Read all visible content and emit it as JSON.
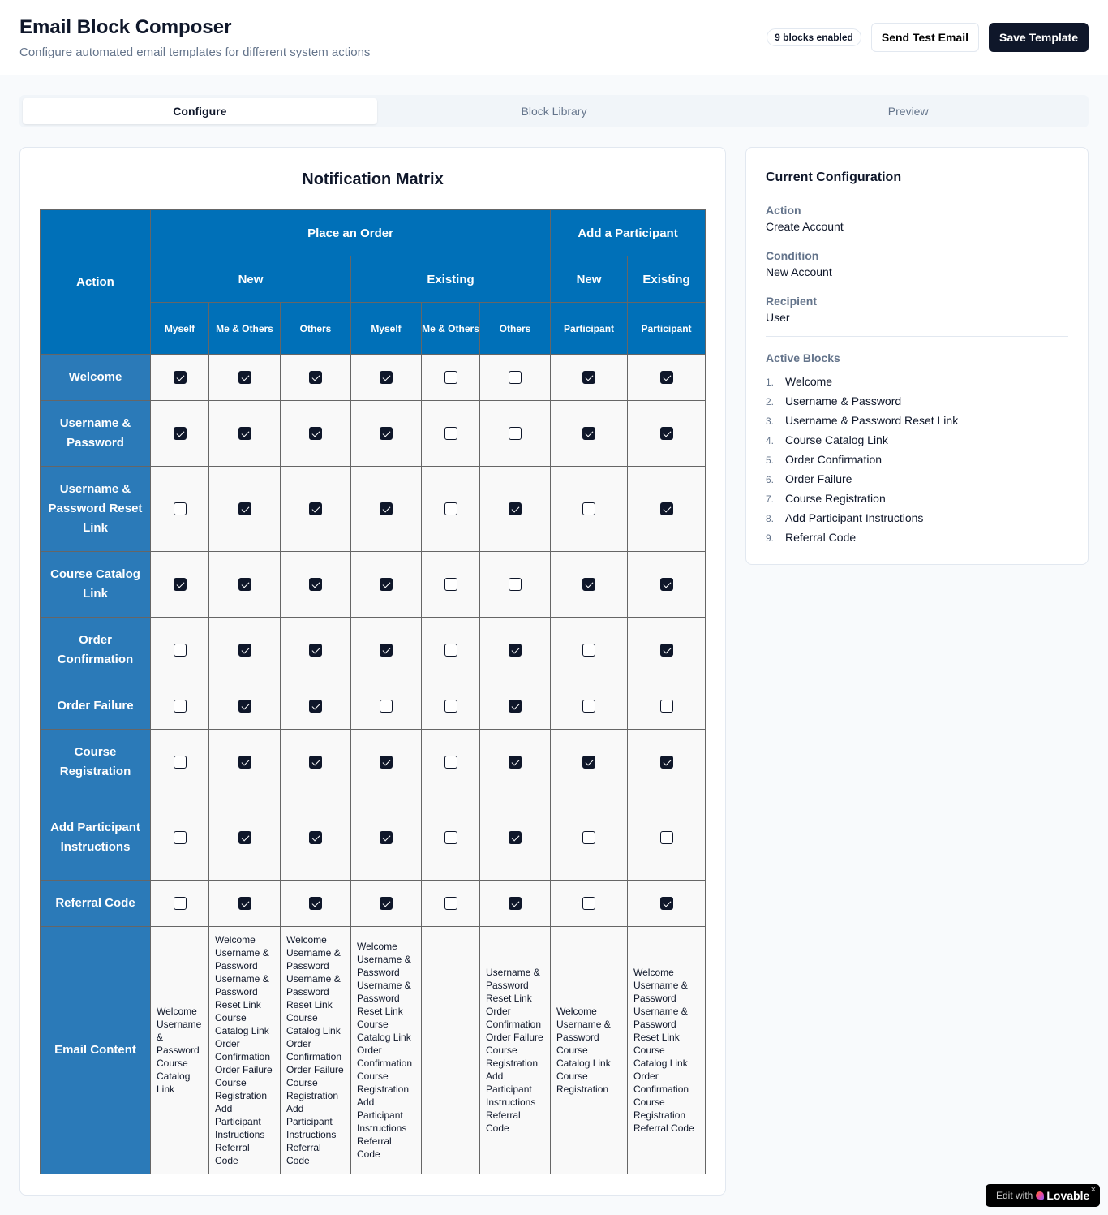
{
  "header": {
    "title": "Email Block Composer",
    "subtitle": "Configure automated email templates for different system actions",
    "badge": "9 blocks enabled",
    "send_test": "Send Test Email",
    "save": "Save Template"
  },
  "tabs": [
    {
      "label": "Configure",
      "active": true
    },
    {
      "label": "Block Library",
      "active": false
    },
    {
      "label": "Preview",
      "active": false
    }
  ],
  "matrix": {
    "title": "Notification Matrix",
    "action_header": "Action",
    "groups": [
      {
        "label": "Place an Order",
        "span": 6
      },
      {
        "label": "Add a Participant",
        "span": 2
      }
    ],
    "subgroups": [
      {
        "label": "New",
        "span": 3
      },
      {
        "label": "Existing",
        "span": 3
      },
      {
        "label": "New",
        "span": 1
      },
      {
        "label": "Existing",
        "span": 1
      }
    ],
    "columns": [
      "Myself",
      "Me & Others",
      "Others",
      "Myself",
      "Me & Others",
      "Others",
      "Participant",
      "Participant"
    ],
    "rows": [
      {
        "label": "Welcome",
        "checks": [
          1,
          1,
          1,
          1,
          0,
          0,
          1,
          1
        ]
      },
      {
        "label": "Username & Password",
        "checks": [
          1,
          1,
          1,
          1,
          0,
          0,
          1,
          1
        ]
      },
      {
        "label": "Username & Password Reset Link",
        "checks": [
          0,
          1,
          1,
          1,
          0,
          1,
          0,
          1
        ]
      },
      {
        "label": "Course Catalog Link",
        "checks": [
          1,
          1,
          1,
          1,
          0,
          0,
          1,
          1
        ]
      },
      {
        "label": "Order Confirmation",
        "checks": [
          0,
          1,
          1,
          1,
          0,
          1,
          0,
          1
        ]
      },
      {
        "label": "Order Failure",
        "checks": [
          0,
          1,
          1,
          0,
          0,
          1,
          0,
          0
        ]
      },
      {
        "label": "Course Registration",
        "checks": [
          0,
          1,
          1,
          1,
          0,
          1,
          1,
          1
        ]
      },
      {
        "label": "Add Participant Instructions",
        "checks": [
          0,
          1,
          1,
          1,
          0,
          1,
          0,
          0
        ]
      },
      {
        "label": "Referral Code",
        "checks": [
          0,
          1,
          1,
          1,
          0,
          1,
          0,
          1
        ]
      }
    ],
    "email_content_label": "Email Content",
    "email_content": [
      [
        "Welcome",
        "Username & Password",
        "Course Catalog Link"
      ],
      [
        "Welcome",
        "Username & Password",
        "Username & Password Reset Link",
        "Course Catalog Link",
        "Order Confirmation",
        "Order Failure",
        "Course Registration",
        "Add Participant Instructions",
        "Referral Code"
      ],
      [
        "Welcome",
        "Username & Password",
        "Username & Password Reset Link",
        "Course Catalog Link",
        "Order Confirmation",
        "Order Failure",
        "Course Registration",
        "Add Participant Instructions",
        "Referral Code"
      ],
      [
        "Welcome",
        "Username & Password",
        "Username & Password Reset Link",
        "Course Catalog Link",
        "Order Confirmation",
        "Course Registration",
        "Add Participant Instructions",
        "Referral Code"
      ],
      [],
      [
        "Username & Password Reset Link",
        "Order Confirmation",
        "Order Failure",
        "Course Registration",
        "Add Participant Instructions",
        "Referral Code"
      ],
      [
        "Welcome",
        "Username & Password",
        "Course Catalog Link",
        "Course Registration"
      ],
      [
        "Welcome",
        "Username & Password",
        "Username & Password Reset Link",
        "Course Catalog Link",
        "Order Confirmation",
        "Course Registration",
        "Referral Code"
      ]
    ]
  },
  "config": {
    "title": "Current Configuration",
    "action_label": "Action",
    "action": "Create Account",
    "condition_label": "Condition",
    "condition": "New Account",
    "recipient_label": "Recipient",
    "recipient": "User",
    "active_label": "Active Blocks",
    "active_blocks": [
      "Welcome",
      "Username & Password",
      "Username & Password Reset Link",
      "Course Catalog Link",
      "Order Confirmation",
      "Order Failure",
      "Course Registration",
      "Add Participant Instructions",
      "Referral Code"
    ]
  },
  "lovable": {
    "prefix": "Edit with",
    "brand": "Lovable",
    "close": "×"
  },
  "colors": {
    "header_blue": "#0070b8",
    "row_blue": "#2b7ab8",
    "primary": "#0f172a"
  }
}
